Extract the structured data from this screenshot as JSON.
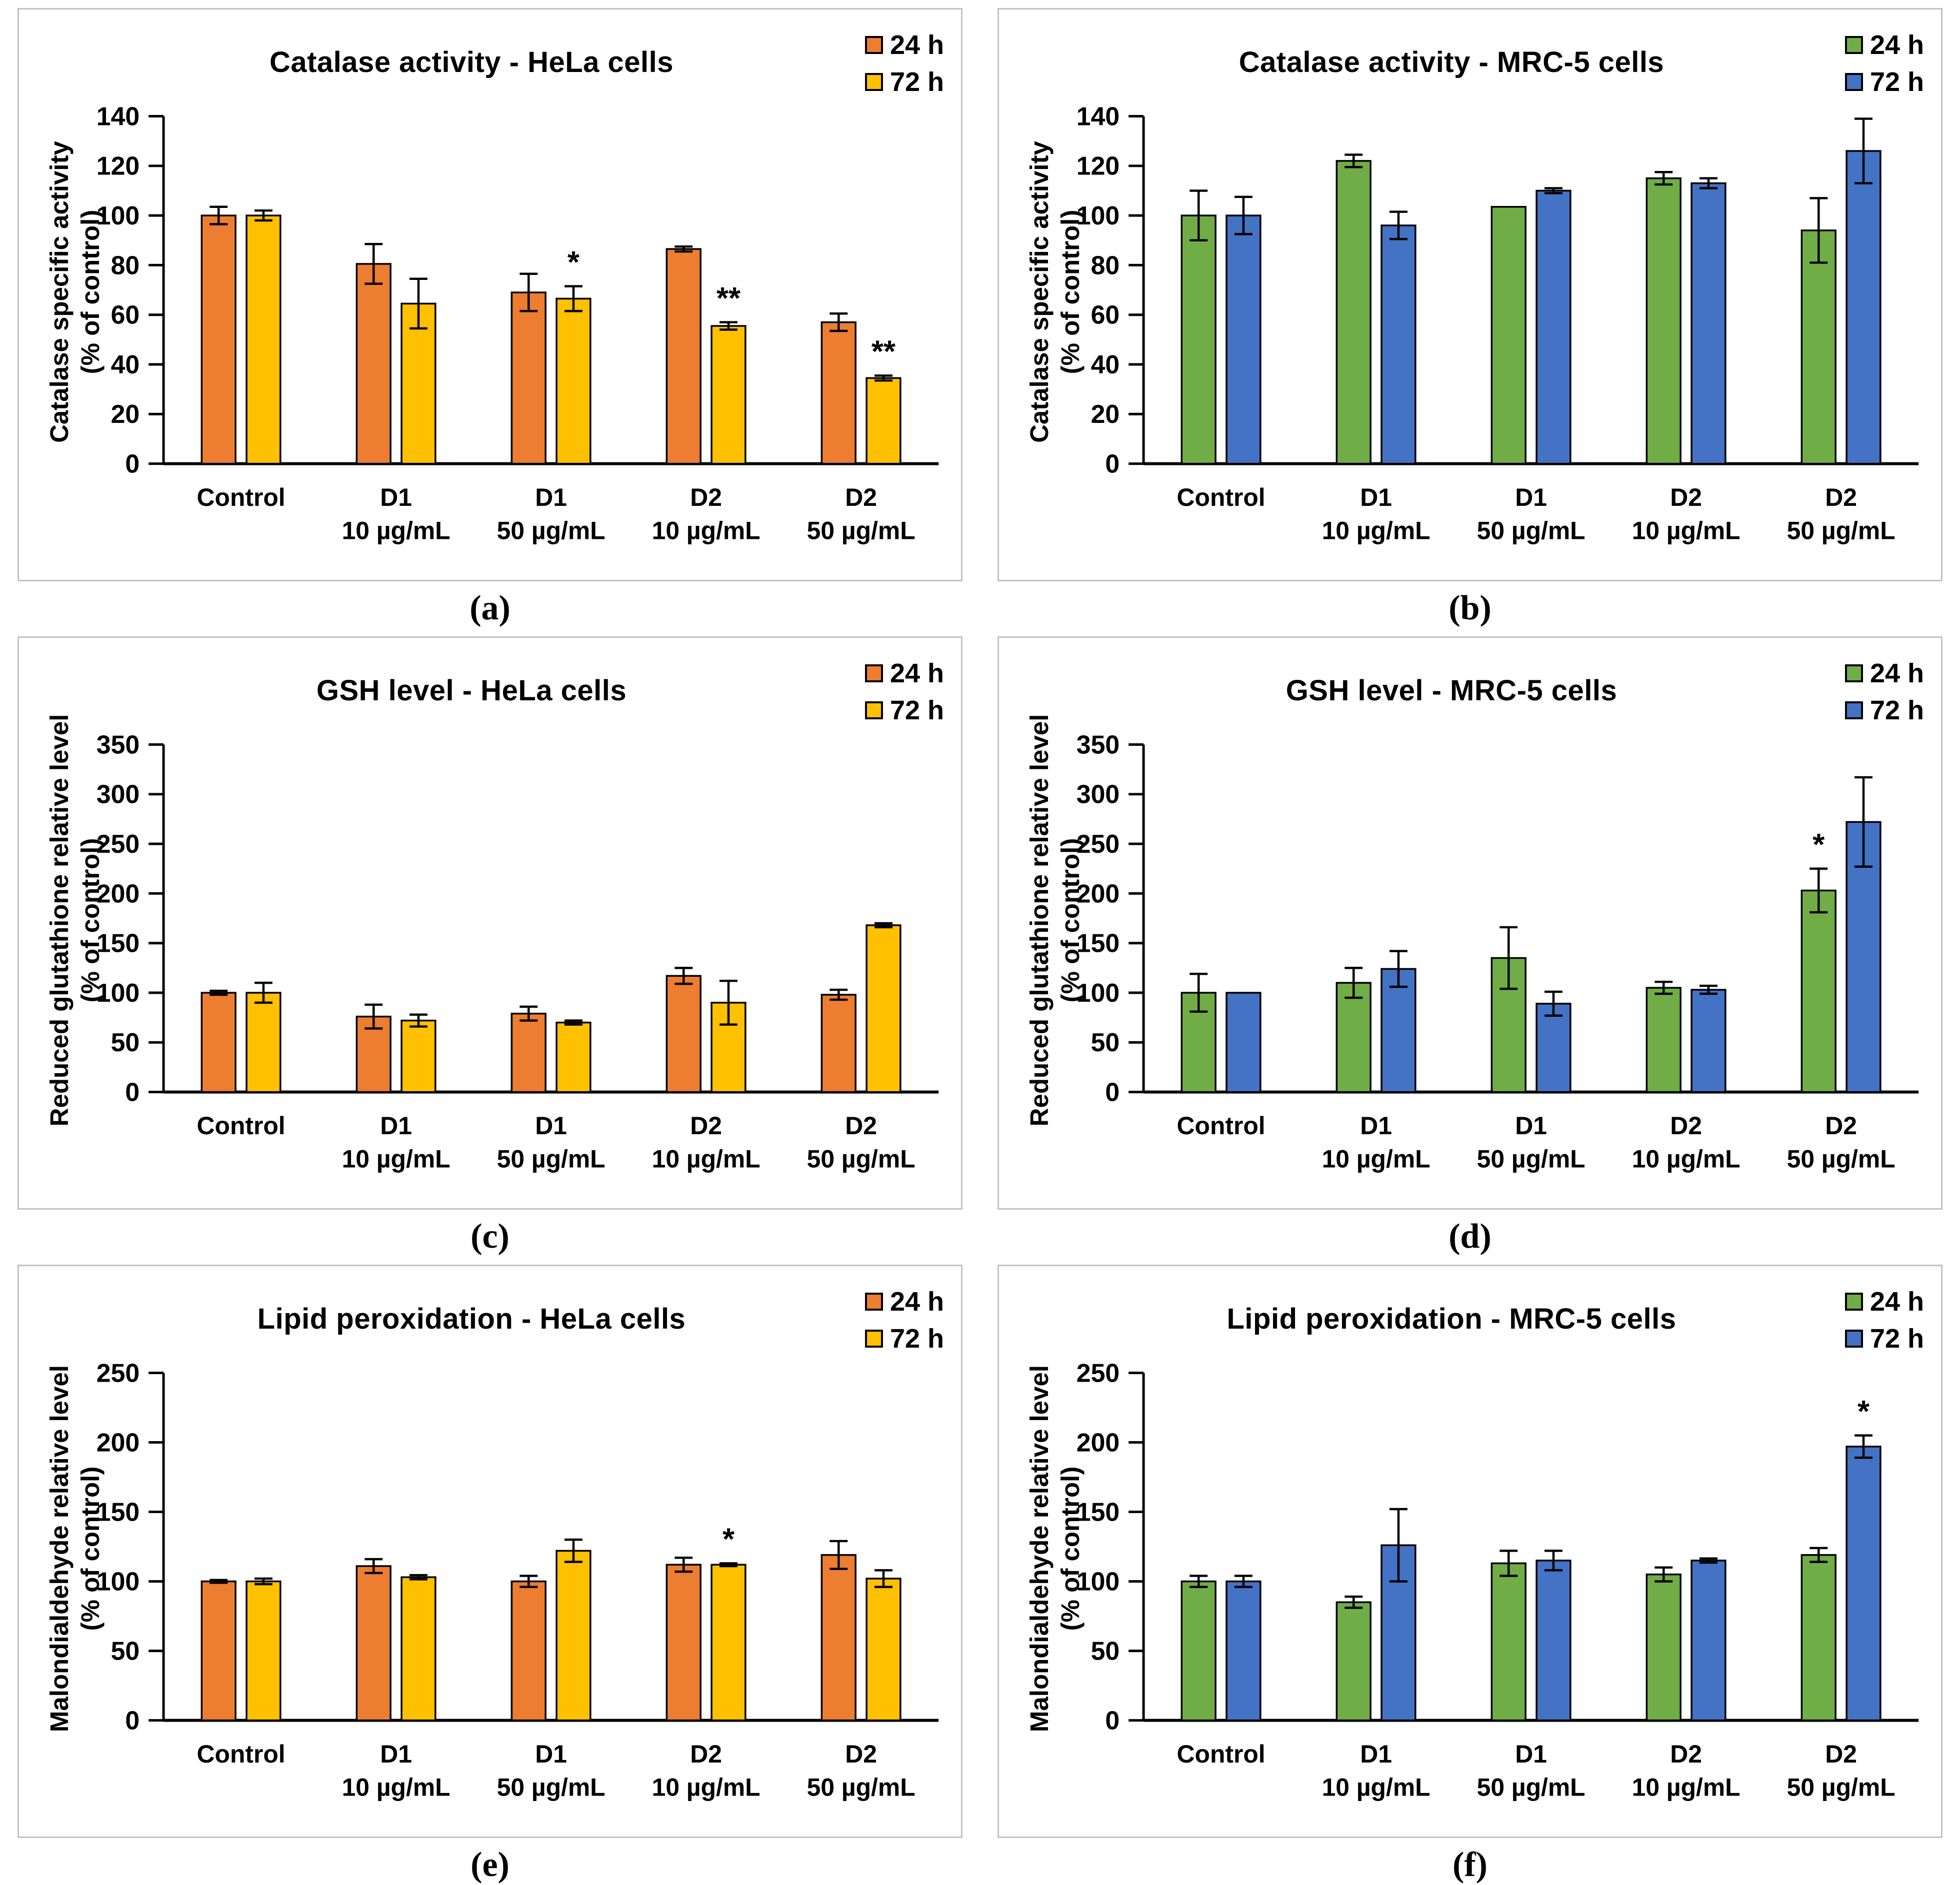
{
  "chart_data": [
    {
      "type": "bar",
      "panel_letter": "(a)",
      "title": "Catalase activity - HeLa cells",
      "ylabel_lines": [
        "Catalase specific activity",
        "(% of control)"
      ],
      "ylim": [
        0,
        140
      ],
      "ytick_step": 20,
      "grid": false,
      "legend_position": "top-right",
      "categories": [
        [
          "Control"
        ],
        [
          "D1",
          "10 µg/mL"
        ],
        [
          "D1",
          "50 µg/mL"
        ],
        [
          "D2",
          "10 µg/mL"
        ],
        [
          "D2",
          "50 µg/mL"
        ]
      ],
      "series": [
        {
          "name": "24 h",
          "color": "#ED7D31",
          "values": [
            100,
            80.5,
            69,
            86.5,
            57
          ],
          "errors": [
            3.5,
            8,
            7.5,
            1,
            3.5
          ],
          "sig": [
            "",
            "",
            "",
            "",
            ""
          ]
        },
        {
          "name": "72 h",
          "color": "#FFC000",
          "values": [
            100,
            64.5,
            66.5,
            55.5,
            34.5
          ],
          "errors": [
            2,
            10,
            5,
            1.5,
            1
          ],
          "sig": [
            "",
            "",
            "*",
            "**",
            "**"
          ]
        }
      ]
    },
    {
      "type": "bar",
      "panel_letter": "(b)",
      "title": "Catalase activity - MRC-5 cells",
      "ylabel_lines": [
        "Catalase specific activity",
        "(% of control)"
      ],
      "ylim": [
        0,
        140
      ],
      "ytick_step": 20,
      "grid": false,
      "legend_position": "top-right",
      "categories": [
        [
          "Control"
        ],
        [
          "D1",
          "10 µg/mL"
        ],
        [
          "D1",
          "50 µg/mL"
        ],
        [
          "D2",
          "10 µg/mL"
        ],
        [
          "D2",
          "50 µg/mL"
        ]
      ],
      "series": [
        {
          "name": "24 h",
          "color": "#70AD47",
          "values": [
            100,
            122,
            103.5,
            115,
            94
          ],
          "errors": [
            10,
            2.5,
            0,
            2.5,
            13
          ],
          "sig": [
            "",
            "",
            "",
            "",
            ""
          ]
        },
        {
          "name": "72 h",
          "color": "#4472C4",
          "values": [
            100,
            96,
            110,
            113,
            126
          ],
          "errors": [
            7.5,
            5.5,
            1,
            2,
            13
          ],
          "sig": [
            "",
            "",
            "",
            "",
            ""
          ]
        }
      ]
    },
    {
      "type": "bar",
      "panel_letter": "(c)",
      "title": "GSH level - HeLa cells",
      "ylabel_lines": [
        "Reduced glutathione relative level",
        "(% of control)"
      ],
      "ylim": [
        0,
        350
      ],
      "ytick_step": 50,
      "grid": false,
      "legend_position": "top-right",
      "categories": [
        [
          "Control"
        ],
        [
          "D1",
          "10 µg/mL"
        ],
        [
          "D1",
          "50 µg/mL"
        ],
        [
          "D2",
          "10 µg/mL"
        ],
        [
          "D2",
          "50 µg/mL"
        ]
      ],
      "series": [
        {
          "name": "24 h",
          "color": "#ED7D31",
          "values": [
            100,
            76,
            79,
            117,
            98
          ],
          "errors": [
            2,
            12,
            7,
            8,
            5
          ],
          "sig": [
            "",
            "",
            "",
            "",
            ""
          ]
        },
        {
          "name": "72 h",
          "color": "#FFC000",
          "values": [
            100,
            72,
            70,
            90,
            168
          ],
          "errors": [
            10,
            6,
            2,
            22,
            2
          ],
          "sig": [
            "",
            "",
            "",
            "",
            ""
          ]
        }
      ]
    },
    {
      "type": "bar",
      "panel_letter": "(d)",
      "title": "GSH level - MRC-5 cells",
      "ylabel_lines": [
        "Reduced glutathione relative level",
        "(% of control)"
      ],
      "ylim": [
        0,
        350
      ],
      "ytick_step": 50,
      "grid": false,
      "legend_position": "top-right",
      "categories": [
        [
          "Control"
        ],
        [
          "D1",
          "10 µg/mL"
        ],
        [
          "D1",
          "50 µg/mL"
        ],
        [
          "D2",
          "10 µg/mL"
        ],
        [
          "D2",
          "50 µg/mL"
        ]
      ],
      "series": [
        {
          "name": "24 h",
          "color": "#70AD47",
          "values": [
            100,
            110,
            135,
            105,
            203
          ],
          "errors": [
            19,
            15,
            31,
            6,
            22
          ],
          "sig": [
            "",
            "",
            "",
            "",
            "*"
          ]
        },
        {
          "name": "72 h",
          "color": "#4472C4",
          "values": [
            100,
            124,
            89,
            103,
            272
          ],
          "errors": [
            0,
            18,
            12,
            4,
            45
          ],
          "sig": [
            "",
            "",
            "",
            "",
            ""
          ]
        }
      ]
    },
    {
      "type": "bar",
      "panel_letter": "(e)",
      "title": "Lipid peroxidation - HeLa cells",
      "ylabel_lines": [
        "Malondialdehyde relative level",
        "(% of control)"
      ],
      "ylim": [
        0,
        250
      ],
      "ytick_step": 50,
      "grid": false,
      "legend_position": "top-right",
      "categories": [
        [
          "Control"
        ],
        [
          "D1",
          "10 µg/mL"
        ],
        [
          "D1",
          "50 µg/mL"
        ],
        [
          "D2",
          "10 µg/mL"
        ],
        [
          "D2",
          "50 µg/mL"
        ]
      ],
      "series": [
        {
          "name": "24 h",
          "color": "#ED7D31",
          "values": [
            100,
            111,
            100,
            112,
            119
          ],
          "errors": [
            1,
            5,
            4,
            5,
            10
          ],
          "sig": [
            "",
            "",
            "",
            "",
            ""
          ]
        },
        {
          "name": "72 h",
          "color": "#FFC000",
          "values": [
            100,
            103,
            122,
            112,
            102
          ],
          "errors": [
            2,
            1.5,
            8,
            1,
            6
          ],
          "sig": [
            "",
            "",
            "",
            "*",
            ""
          ]
        }
      ]
    },
    {
      "type": "bar",
      "panel_letter": "(f)",
      "title": "Lipid peroxidation - MRC-5 cells",
      "ylabel_lines": [
        "Malondialdehyde relative level",
        "(% of control)"
      ],
      "ylim": [
        0,
        250
      ],
      "ytick_step": 50,
      "grid": false,
      "legend_position": "top-right",
      "categories": [
        [
          "Control"
        ],
        [
          "D1",
          "10 µg/mL"
        ],
        [
          "D1",
          "50 µg/mL"
        ],
        [
          "D2",
          "10 µg/mL"
        ],
        [
          "D2",
          "50 µg/mL"
        ]
      ],
      "series": [
        {
          "name": "24 h",
          "color": "#70AD47",
          "values": [
            100,
            85,
            113,
            105,
            119
          ],
          "errors": [
            4,
            4,
            9,
            5,
            5
          ],
          "sig": [
            "",
            "",
            "",
            "",
            ""
          ]
        },
        {
          "name": "72 h",
          "color": "#4472C4",
          "values": [
            100,
            126,
            115,
            115,
            197
          ],
          "errors": [
            4,
            26,
            7,
            1.5,
            8
          ],
          "sig": [
            "",
            "",
            "",
            "",
            "*"
          ]
        }
      ]
    }
  ]
}
